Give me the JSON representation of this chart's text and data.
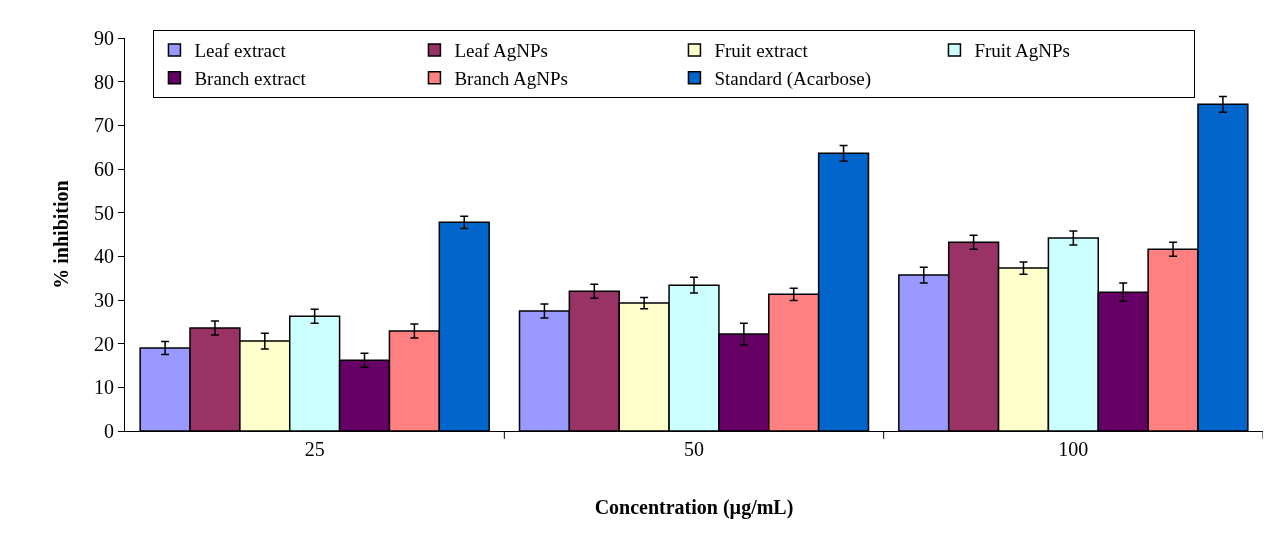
{
  "chart_data": {
    "type": "bar",
    "xlabel": "Concentration (µg/mL)",
    "ylabel": "% inhibition",
    "categories": [
      "25",
      "50",
      "100"
    ],
    "series": [
      {
        "name": "Leaf extract",
        "color": "#9999ff",
        "values": [
          19.0,
          27.5,
          35.7
        ],
        "errors": [
          1.5,
          1.6,
          1.8
        ]
      },
      {
        "name": "Leaf AgNPs",
        "color": "#993366",
        "values": [
          23.6,
          32.0,
          43.2
        ],
        "errors": [
          1.6,
          1.6,
          1.6
        ]
      },
      {
        "name": "Fruit extract",
        "color": "#ffffcc",
        "values": [
          20.6,
          29.3,
          37.3
        ],
        "errors": [
          1.8,
          1.3,
          1.4
        ]
      },
      {
        "name": "Fruit AgNPs",
        "color": "#ccffff",
        "values": [
          26.3,
          33.4,
          44.2
        ],
        "errors": [
          1.6,
          1.8,
          1.6
        ]
      },
      {
        "name": "Branch extract",
        "color": "#660066",
        "values": [
          16.2,
          22.2,
          31.8
        ],
        "errors": [
          1.6,
          2.5,
          2.1
        ]
      },
      {
        "name": "Branch AgNPs",
        "color": "#ff8080",
        "values": [
          22.9,
          31.3,
          41.6
        ],
        "errors": [
          1.6,
          1.4,
          1.6
        ]
      },
      {
        "name": "Standard (Acarbose)",
        "color": "#0066cc",
        "values": [
          47.8,
          63.6,
          74.8
        ],
        "errors": [
          1.4,
          1.8,
          1.8
        ]
      }
    ],
    "ylim": [
      0,
      90
    ],
    "yticks": [
      0,
      10,
      20,
      30,
      40,
      50,
      60,
      70,
      80,
      90
    ],
    "legend": "top"
  }
}
